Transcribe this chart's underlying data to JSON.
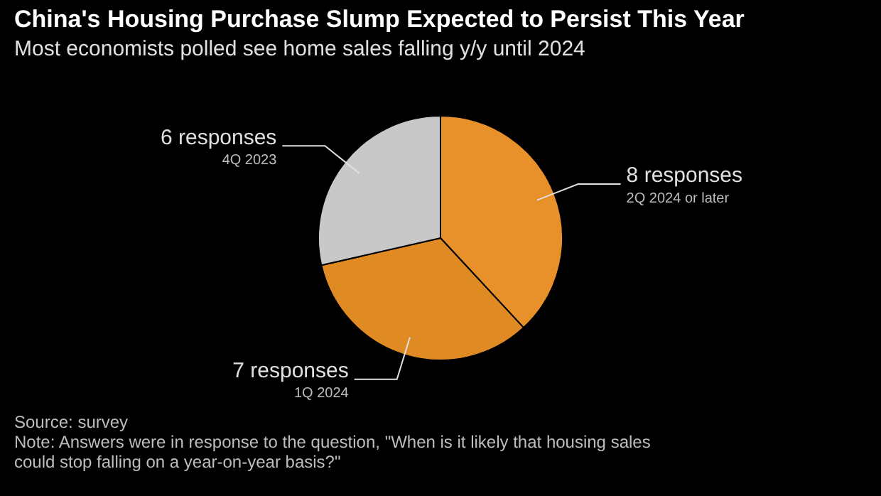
{
  "chart_data": {
    "type": "pie",
    "title": "China's Housing Purchase Slump Expected to Persist This Year",
    "subtitle": "Most economists polled see home sales falling y/y until 2024",
    "categories": [
      "2Q 2024 or later",
      "1Q 2024",
      "4Q 2023"
    ],
    "values": [
      8,
      7,
      6
    ],
    "value_labels": [
      "8 responses",
      "7 responses",
      "6 responses"
    ],
    "colors": [
      "#e8912a",
      "#e08a24",
      "#c8c8c8"
    ],
    "legend": false,
    "annotations": [
      "Source: survey",
      "Note: Answers were in response to the question, \"When is it likely that housing sales could stop falling on a year-on-year basis?\""
    ]
  }
}
